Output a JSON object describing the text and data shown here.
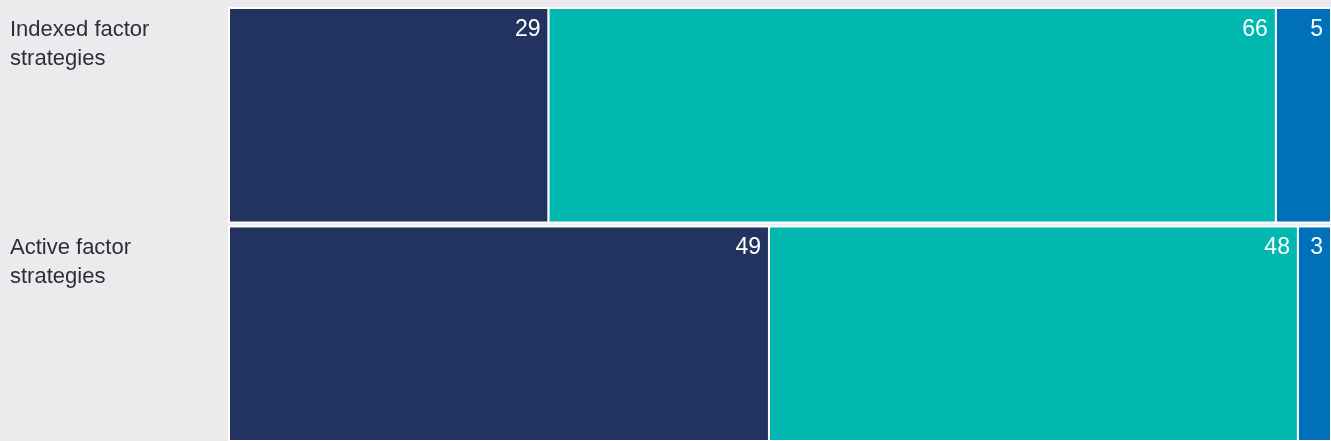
{
  "chart_data": {
    "type": "bar",
    "orientation": "horizontal",
    "stacked": true,
    "data_labels": true,
    "categories": [
      "Indexed factor strategies",
      "Active factor strategies"
    ],
    "series": [
      {
        "color": "#22335f",
        "values": [
          29,
          49
        ]
      },
      {
        "color": "#00b8b0",
        "values": [
          66,
          48
        ]
      },
      {
        "color": "#0070bb",
        "values": [
          5,
          3
        ]
      }
    ]
  }
}
